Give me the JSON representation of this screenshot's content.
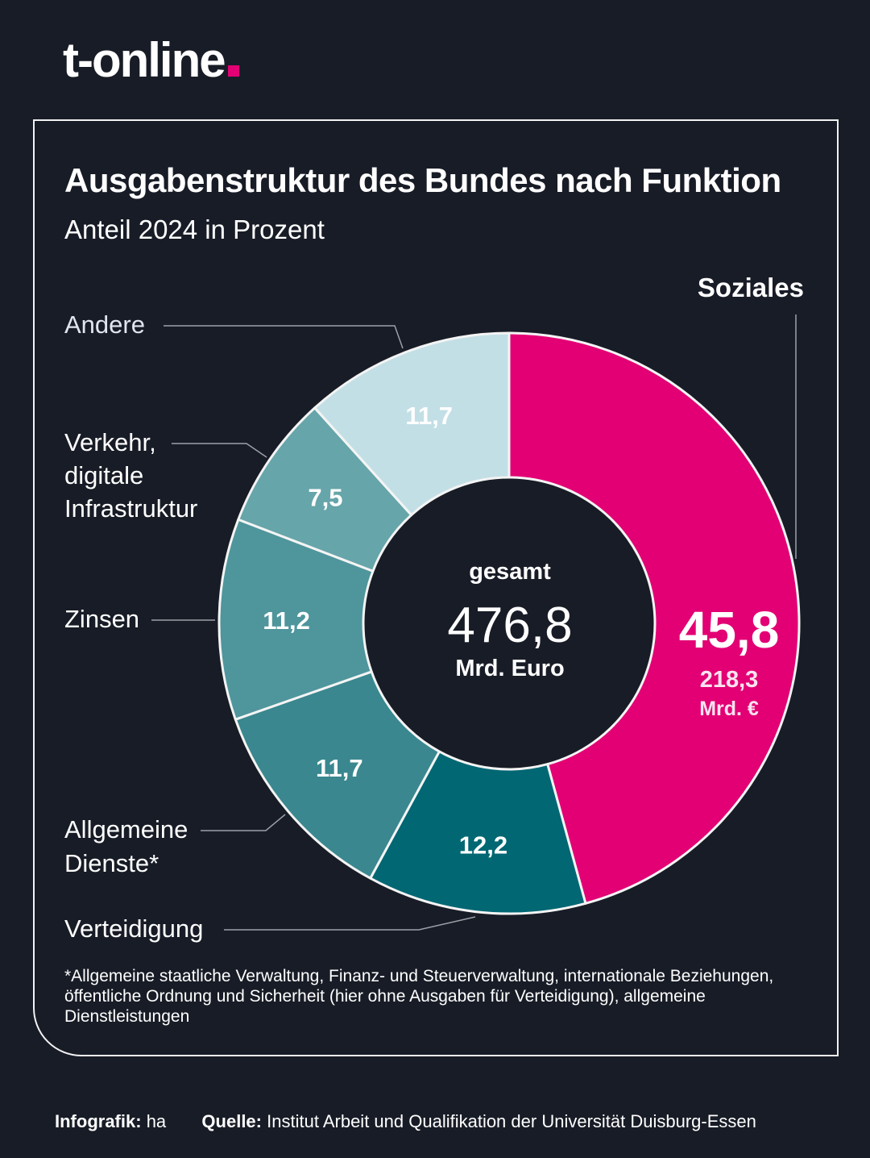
{
  "brand": {
    "logo_text": "t-online",
    "accent_color": "#e20074"
  },
  "header": {
    "title": "Ausgabenstruktur des Bundes nach Funktion",
    "subtitle": "Anteil 2024 in Prozent"
  },
  "center": {
    "label": "gesamt",
    "value": "476,8",
    "unit": "Mrd. Euro"
  },
  "highlight": {
    "label": "Soziales",
    "value": "45,8",
    "amount": "218,3",
    "amount_unit": "Mrd. €"
  },
  "chart_data": {
    "type": "pie",
    "variant": "donut",
    "title": "Ausgabenstruktur des Bundes nach Funktion",
    "subtitle": "Anteil 2024 in Prozent",
    "unit": "Prozent",
    "total": {
      "label": "gesamt",
      "value": 476.8,
      "unit": "Mrd. Euro"
    },
    "start": "top",
    "direction": "clockwise",
    "slices": [
      {
        "name": "Soziales",
        "label": "Soziales",
        "value": 45.8,
        "display": "45,8",
        "color": "#e20074",
        "amount": "218,3 Mrd. €"
      },
      {
        "name": "Verteidigung",
        "label": "Verteidigung",
        "value": 12.2,
        "display": "12,2",
        "color": "#006773"
      },
      {
        "name": "Allgemeine Dienste",
        "label": "Allgemeine Dienste*",
        "value": 11.7,
        "display": "11,7",
        "color": "#3a878f"
      },
      {
        "name": "Zinsen",
        "label": "Zinsen",
        "value": 11.2,
        "display": "11,2",
        "color": "#4f959c"
      },
      {
        "name": "Verkehr, digitale Infrastruktur",
        "label": "Verkehr, digitale Infrastruktur",
        "value": 7.5,
        "display": "7,5",
        "color": "#66a5aa"
      },
      {
        "name": "Andere",
        "label": "Andere",
        "value": 11.7,
        "display": "11,7",
        "color": "#c3dfe6"
      }
    ],
    "legend_placement": "outside-labels"
  },
  "labels": {
    "andere": [
      "Andere"
    ],
    "verkehr": [
      "Verkehr,",
      "digitale",
      "Infrastruktur"
    ],
    "zinsen": [
      "Zinsen"
    ],
    "allgemeine": [
      "Allgemeine",
      "Dienste*"
    ],
    "verteidigung": [
      "Verteidigung"
    ],
    "soziales": [
      "Soziales"
    ]
  },
  "footnote": "*Allgemeine staatliche Verwaltung, Finanz- und Steuerverwaltung, internationale Beziehungen, öffentliche Ordnung und Sicherheit (hier ohne Ausgaben für Verteidigung), allgemeine Dienstleistungen",
  "credits": {
    "infografik_label": "Infografik:",
    "infografik_value": "ha",
    "quelle_label": "Quelle:",
    "quelle_value": "Institut Arbeit und Qualifikation der Universität Duisburg-Essen"
  }
}
